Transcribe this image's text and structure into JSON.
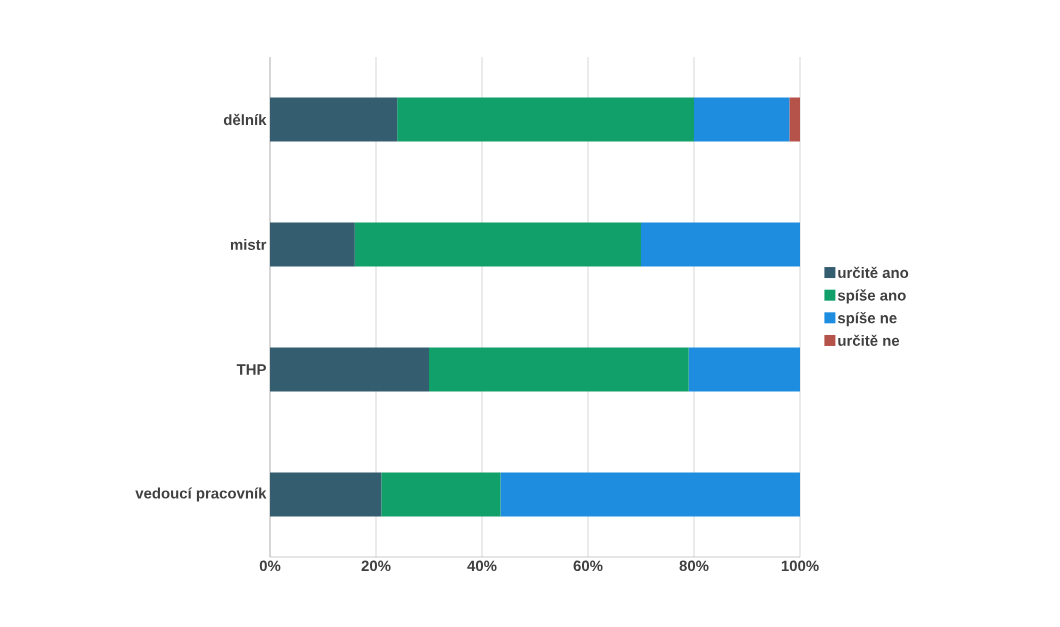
{
  "chart_data": {
    "type": "bar",
    "orientation": "horizontal",
    "stacked": true,
    "categories": [
      "dělník",
      "mistr",
      "THP",
      "vedoucí pracovník"
    ],
    "series": [
      {
        "name": "určitě ano",
        "color": "#345e70",
        "values": [
          24,
          16,
          30,
          21
        ]
      },
      {
        "name": "spíše ano",
        "color": "#12a06a",
        "values": [
          56,
          54,
          49,
          22.5
        ]
      },
      {
        "name": "spíše ne",
        "color": "#1e8de0",
        "values": [
          18,
          30,
          21,
          56.5
        ]
      },
      {
        "name": "určitě ne",
        "color": "#b5524a",
        "values": [
          2,
          0,
          0,
          0
        ]
      }
    ],
    "xlim": [
      0,
      100
    ],
    "xticks": [
      {
        "value": 0,
        "label": "0%"
      },
      {
        "value": 20,
        "label": "20%"
      },
      {
        "value": 40,
        "label": "40%"
      },
      {
        "value": 60,
        "label": "60%"
      },
      {
        "value": 80,
        "label": "80%"
      },
      {
        "value": 100,
        "label": "100%"
      }
    ],
    "grid": "x",
    "legend": "right"
  }
}
